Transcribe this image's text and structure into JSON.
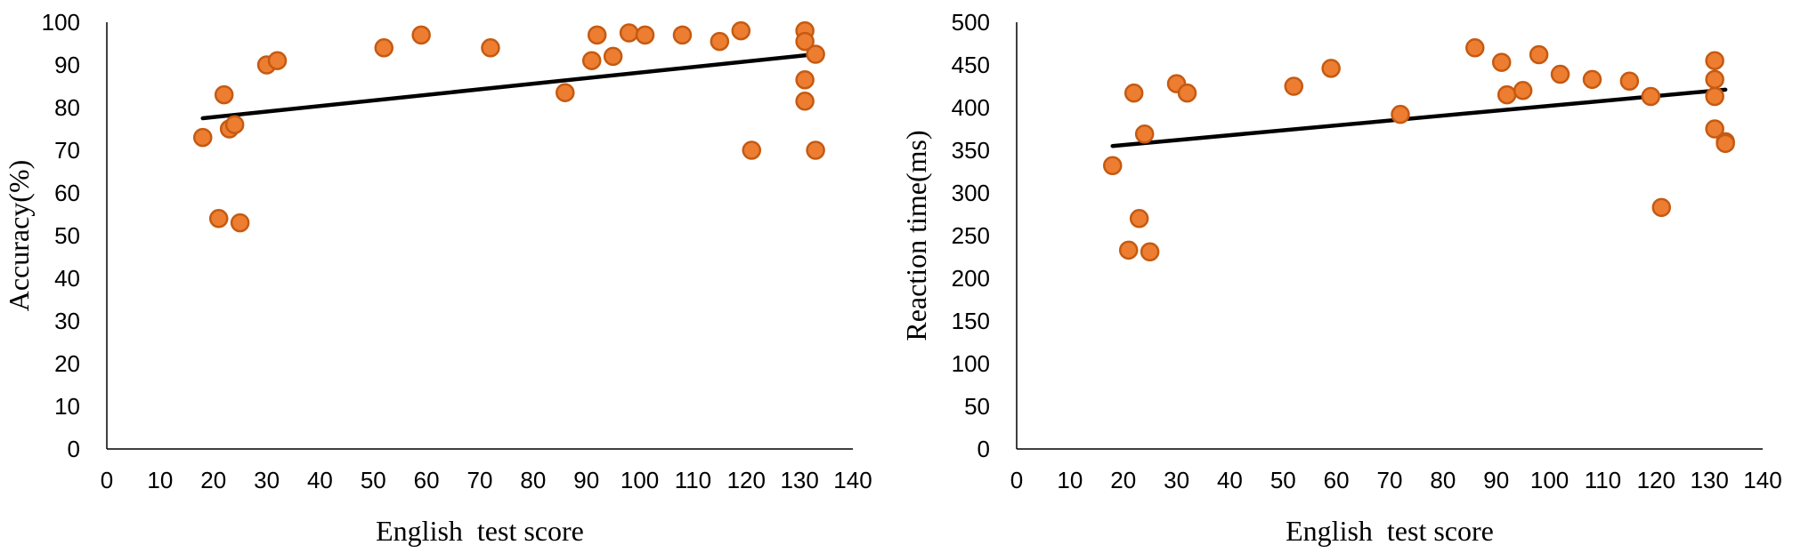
{
  "colors": {
    "marker_fill": "#ED7D31",
    "marker_stroke": "#C55A11",
    "trend_line": "#000000",
    "axis": "#000000"
  },
  "chart_data": [
    {
      "type": "scatter",
      "title": "",
      "xlabel": "English  test score",
      "ylabel": "Accuracy(%)",
      "xlim": [
        0,
        140
      ],
      "ylim": [
        0,
        100
      ],
      "xticks": [
        "0",
        "10",
        "20",
        "30",
        "40",
        "50",
        "60",
        "70",
        "80",
        "90",
        "100",
        "110",
        "120",
        "130",
        "140"
      ],
      "yticks": [
        "0",
        "10",
        "20",
        "30",
        "40",
        "50",
        "60",
        "70",
        "80",
        "90",
        "100"
      ],
      "grid": false,
      "legend": "none",
      "points": [
        [
          18,
          73
        ],
        [
          21,
          54
        ],
        [
          22,
          83
        ],
        [
          23,
          75
        ],
        [
          24,
          76
        ],
        [
          25,
          53
        ],
        [
          30,
          90
        ],
        [
          32,
          91
        ],
        [
          52,
          94
        ],
        [
          59,
          97
        ],
        [
          72,
          94
        ],
        [
          86,
          83.5
        ],
        [
          91,
          91
        ],
        [
          92,
          97
        ],
        [
          95,
          92
        ],
        [
          98,
          97.5
        ],
        [
          101,
          97
        ],
        [
          108,
          97
        ],
        [
          115,
          95.5
        ],
        [
          119,
          98
        ],
        [
          121,
          70
        ],
        [
          131,
          98
        ],
        [
          131,
          95.5
        ],
        [
          131,
          86.5
        ],
        [
          131,
          81.5
        ],
        [
          133,
          92.5
        ],
        [
          133,
          70
        ]
      ],
      "trendline": {
        "x": [
          18,
          133
        ],
        "y": [
          77.5,
          92.5
        ]
      }
    },
    {
      "type": "scatter",
      "title": "",
      "xlabel": "English  test score",
      "ylabel": "Reaction time(ms)",
      "xlim": [
        0,
        140
      ],
      "ylim": [
        0,
        500
      ],
      "xticks": [
        "0",
        "10",
        "20",
        "30",
        "40",
        "50",
        "60",
        "70",
        "80",
        "90",
        "100",
        "110",
        "120",
        "130",
        "140"
      ],
      "yticks": [
        "0",
        "50",
        "100",
        "150",
        "200",
        "250",
        "300",
        "350",
        "400",
        "450",
        "500"
      ],
      "grid": false,
      "legend": "none",
      "points": [
        [
          18,
          332
        ],
        [
          21,
          233
        ],
        [
          22,
          417
        ],
        [
          23,
          270
        ],
        [
          24,
          369
        ],
        [
          25,
          231
        ],
        [
          30,
          428
        ],
        [
          32,
          417
        ],
        [
          52,
          425
        ],
        [
          59,
          446
        ],
        [
          72,
          392
        ],
        [
          86,
          470
        ],
        [
          91,
          453
        ],
        [
          92,
          415
        ],
        [
          95,
          420
        ],
        [
          98,
          462
        ],
        [
          102,
          439
        ],
        [
          108,
          433
        ],
        [
          115,
          431
        ],
        [
          119,
          413
        ],
        [
          121,
          283
        ],
        [
          131,
          455
        ],
        [
          131,
          433
        ],
        [
          131,
          413
        ],
        [
          131,
          375
        ],
        [
          133,
          360
        ],
        [
          133,
          358
        ]
      ],
      "trendline": {
        "x": [
          18,
          133
        ],
        "y": [
          355,
          421
        ]
      }
    }
  ]
}
